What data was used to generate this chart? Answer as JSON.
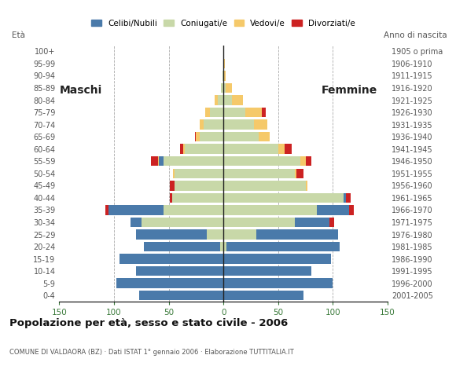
{
  "age_groups": [
    "0-4",
    "5-9",
    "10-14",
    "15-19",
    "20-24",
    "25-29",
    "30-34",
    "35-39",
    "40-44",
    "45-49",
    "50-54",
    "55-59",
    "60-64",
    "65-69",
    "70-74",
    "75-79",
    "80-84",
    "85-89",
    "90-94",
    "95-99",
    "100+"
  ],
  "birth_years": [
    "2001-2005",
    "1996-2000",
    "1991-1995",
    "1986-1990",
    "1981-1985",
    "1976-1980",
    "1971-1975",
    "1966-1970",
    "1961-1965",
    "1956-1960",
    "1951-1955",
    "1946-1950",
    "1941-1945",
    "1936-1940",
    "1931-1935",
    "1926-1930",
    "1921-1925",
    "1916-1920",
    "1911-1915",
    "1906-1910",
    "1905 o prima"
  ],
  "males": {
    "celibi": [
      77,
      98,
      80,
      95,
      70,
      65,
      10,
      50,
      0,
      0,
      0,
      4,
      0,
      0,
      0,
      0,
      0,
      0,
      0,
      0,
      0
    ],
    "coniugati": [
      0,
      0,
      0,
      0,
      3,
      15,
      75,
      55,
      47,
      45,
      45,
      55,
      35,
      22,
      18,
      12,
      5,
      2,
      1,
      0,
      0
    ],
    "vedovi": [
      0,
      0,
      0,
      0,
      0,
      0,
      0,
      0,
      0,
      0,
      1,
      1,
      2,
      3,
      4,
      5,
      3,
      0,
      0,
      0,
      0
    ],
    "divorziati": [
      0,
      0,
      0,
      0,
      0,
      0,
      0,
      3,
      2,
      4,
      0,
      6,
      3,
      1,
      0,
      0,
      0,
      0,
      0,
      0,
      0
    ]
  },
  "females": {
    "nubili": [
      73,
      100,
      80,
      98,
      103,
      75,
      32,
      30,
      2,
      0,
      0,
      0,
      0,
      0,
      0,
      0,
      0,
      0,
      0,
      0,
      0
    ],
    "coniugate": [
      0,
      0,
      0,
      0,
      3,
      30,
      65,
      85,
      110,
      75,
      65,
      70,
      50,
      32,
      28,
      20,
      8,
      2,
      0,
      0,
      0
    ],
    "vedove": [
      0,
      0,
      0,
      0,
      0,
      0,
      0,
      0,
      0,
      2,
      2,
      5,
      6,
      10,
      12,
      15,
      10,
      6,
      2,
      1,
      0
    ],
    "divorziate": [
      0,
      0,
      0,
      0,
      0,
      0,
      4,
      4,
      4,
      0,
      6,
      5,
      6,
      0,
      0,
      4,
      0,
      0,
      0,
      0,
      0
    ]
  },
  "colors": {
    "celibi_nubili": "#4a7aaa",
    "coniugati": "#c8d8a8",
    "vedovi": "#f5c96a",
    "divorziati": "#cc2222"
  },
  "xlim": 150,
  "title": "Popolazione per età, sesso e stato civile - 2006",
  "subtitle": "COMUNE DI VALDAORA (BZ) · Dati ISTAT 1° gennaio 2006 · Elaborazione TUTTITALIA.IT",
  "ylabel_left": "Età",
  "ylabel_right": "Anno di nascita",
  "label_maschi": "Maschi",
  "label_femmine": "Femmine",
  "legend_labels": [
    "Celibi/Nubili",
    "Coniugati/e",
    "Vedovi/e",
    "Divorziati/e"
  ],
  "background_color": "#ffffff",
  "grid_color": "#aaaaaa"
}
